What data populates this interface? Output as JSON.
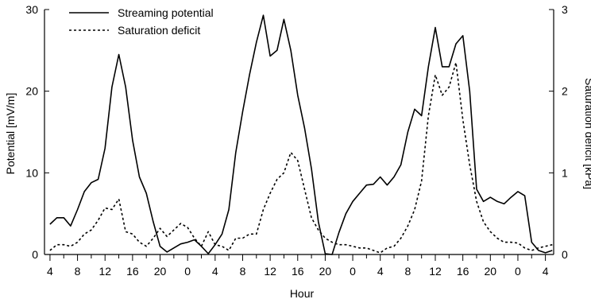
{
  "chart_data": {
    "type": "line",
    "xlabel": "Hour",
    "ylabel_left": "Potential [mV/m]",
    "ylabel_right": "Saturation deficit [kPa]",
    "ylim_left": [
      0,
      30
    ],
    "ylim_right": [
      0,
      3
    ],
    "yticks_left": [
      "0",
      "10",
      "20",
      "30"
    ],
    "yticks_right": [
      "0",
      "1",
      "2",
      "3"
    ],
    "xlim": [
      4,
      77
    ],
    "xticks": [
      {
        "x": 4,
        "label": "4"
      },
      {
        "x": 8,
        "label": "8"
      },
      {
        "x": 12,
        "label": "12"
      },
      {
        "x": 16,
        "label": "16"
      },
      {
        "x": 20,
        "label": "20"
      },
      {
        "x": 24,
        "label": "0"
      },
      {
        "x": 28,
        "label": "4"
      },
      {
        "x": 32,
        "label": "8"
      },
      {
        "x": 36,
        "label": "12"
      },
      {
        "x": 40,
        "label": "16"
      },
      {
        "x": 44,
        "label": "20"
      },
      {
        "x": 48,
        "label": "0"
      },
      {
        "x": 52,
        "label": "4"
      },
      {
        "x": 56,
        "label": "8"
      },
      {
        "x": 60,
        "label": "12"
      },
      {
        "x": 64,
        "label": "16"
      },
      {
        "x": 68,
        "label": "20"
      },
      {
        "x": 72,
        "label": "0"
      },
      {
        "x": 76,
        "label": "4"
      }
    ],
    "grid": false,
    "legend_position": "top-left",
    "series": [
      {
        "name": "Streaming potential",
        "axis": "left",
        "style": "solid",
        "points": [
          [
            4,
            3.7
          ],
          [
            5,
            4.5
          ],
          [
            6,
            4.5
          ],
          [
            7,
            3.5
          ],
          [
            8,
            5.5
          ],
          [
            9,
            7.7
          ],
          [
            10,
            8.8
          ],
          [
            11,
            9.2
          ],
          [
            12,
            13
          ],
          [
            13,
            20.5
          ],
          [
            14,
            24.5
          ],
          [
            15,
            20.5
          ],
          [
            16,
            14
          ],
          [
            17,
            9.5
          ],
          [
            18,
            7.5
          ],
          [
            19,
            4
          ],
          [
            20,
            1
          ],
          [
            21,
            0.3
          ],
          [
            22,
            0.8
          ],
          [
            23,
            1.3
          ],
          [
            24,
            1.5
          ],
          [
            25,
            1.8
          ],
          [
            26,
            1
          ],
          [
            27,
            0.1
          ],
          [
            28,
            1.2
          ],
          [
            29,
            2.5
          ],
          [
            30,
            5.5
          ],
          [
            31,
            12.5
          ],
          [
            32,
            17.5
          ],
          [
            33,
            22
          ],
          [
            34,
            26
          ],
          [
            35,
            29.3
          ],
          [
            36,
            24.3
          ],
          [
            37,
            25
          ],
          [
            38,
            28.8
          ],
          [
            39,
            25
          ],
          [
            40,
            19.5
          ],
          [
            41,
            15.5
          ],
          [
            42,
            10.5
          ],
          [
            43,
            4
          ],
          [
            44,
            0.1
          ],
          [
            45,
            0
          ],
          [
            46,
            2.7
          ],
          [
            47,
            5
          ],
          [
            48,
            6.5
          ],
          [
            49,
            7.5
          ],
          [
            50,
            8.5
          ],
          [
            51,
            8.6
          ],
          [
            52,
            9.5
          ],
          [
            53,
            8.5
          ],
          [
            54,
            9.5
          ],
          [
            55,
            11
          ],
          [
            56,
            15
          ],
          [
            57,
            17.8
          ],
          [
            58,
            17
          ],
          [
            59,
            23
          ],
          [
            60,
            27.8
          ],
          [
            61,
            23
          ],
          [
            62,
            23
          ],
          [
            63,
            25.8
          ],
          [
            64,
            26.8
          ],
          [
            65,
            20
          ],
          [
            66,
            8
          ],
          [
            67,
            6.5
          ],
          [
            68,
            7
          ],
          [
            69,
            6.5
          ],
          [
            70,
            6.2
          ],
          [
            71,
            7
          ],
          [
            72,
            7.7
          ],
          [
            73,
            7.2
          ],
          [
            74,
            1.5
          ],
          [
            75,
            0.5
          ],
          [
            76,
            0.2
          ],
          [
            77,
            0.5
          ]
        ]
      },
      {
        "name": "Saturation deficit",
        "axis": "right",
        "style": "dotted",
        "points": [
          [
            4,
            0.05
          ],
          [
            5,
            0.12
          ],
          [
            6,
            0.12
          ],
          [
            7,
            0.1
          ],
          [
            8,
            0.15
          ],
          [
            9,
            0.25
          ],
          [
            10,
            0.3
          ],
          [
            11,
            0.42
          ],
          [
            12,
            0.57
          ],
          [
            13,
            0.55
          ],
          [
            14,
            0.68
          ],
          [
            15,
            0.28
          ],
          [
            16,
            0.25
          ],
          [
            17,
            0.15
          ],
          [
            18,
            0.1
          ],
          [
            19,
            0.2
          ],
          [
            20,
            0.32
          ],
          [
            21,
            0.22
          ],
          [
            22,
            0.3
          ],
          [
            23,
            0.38
          ],
          [
            24,
            0.33
          ],
          [
            25,
            0.2
          ],
          [
            26,
            0.1
          ],
          [
            27,
            0.28
          ],
          [
            28,
            0.12
          ],
          [
            29,
            0.1
          ],
          [
            30,
            0.05
          ],
          [
            31,
            0.2
          ],
          [
            32,
            0.2
          ],
          [
            33,
            0.25
          ],
          [
            34,
            0.25
          ],
          [
            35,
            0.55
          ],
          [
            36,
            0.75
          ],
          [
            37,
            0.92
          ],
          [
            38,
            1.0
          ],
          [
            39,
            1.25
          ],
          [
            40,
            1.15
          ],
          [
            41,
            0.8
          ],
          [
            42,
            0.45
          ],
          [
            43,
            0.3
          ],
          [
            44,
            0.2
          ],
          [
            45,
            0.15
          ],
          [
            46,
            0.12
          ],
          [
            47,
            0.12
          ],
          [
            48,
            0.1
          ],
          [
            49,
            0.08
          ],
          [
            50,
            0.08
          ],
          [
            51,
            0.05
          ],
          [
            52,
            0.02
          ],
          [
            53,
            0.08
          ],
          [
            54,
            0.1
          ],
          [
            55,
            0.2
          ],
          [
            56,
            0.35
          ],
          [
            57,
            0.55
          ],
          [
            58,
            0.9
          ],
          [
            59,
            1.7
          ],
          [
            60,
            2.2
          ],
          [
            61,
            1.95
          ],
          [
            62,
            2.05
          ],
          [
            63,
            2.35
          ],
          [
            64,
            1.65
          ],
          [
            65,
            1.1
          ],
          [
            66,
            0.65
          ],
          [
            67,
            0.4
          ],
          [
            68,
            0.28
          ],
          [
            69,
            0.2
          ],
          [
            70,
            0.15
          ],
          [
            71,
            0.15
          ],
          [
            72,
            0.14
          ],
          [
            73,
            0.08
          ],
          [
            74,
            0.05
          ],
          [
            75,
            0.08
          ],
          [
            76,
            0.1
          ],
          [
            77,
            0.12
          ]
        ]
      }
    ]
  }
}
